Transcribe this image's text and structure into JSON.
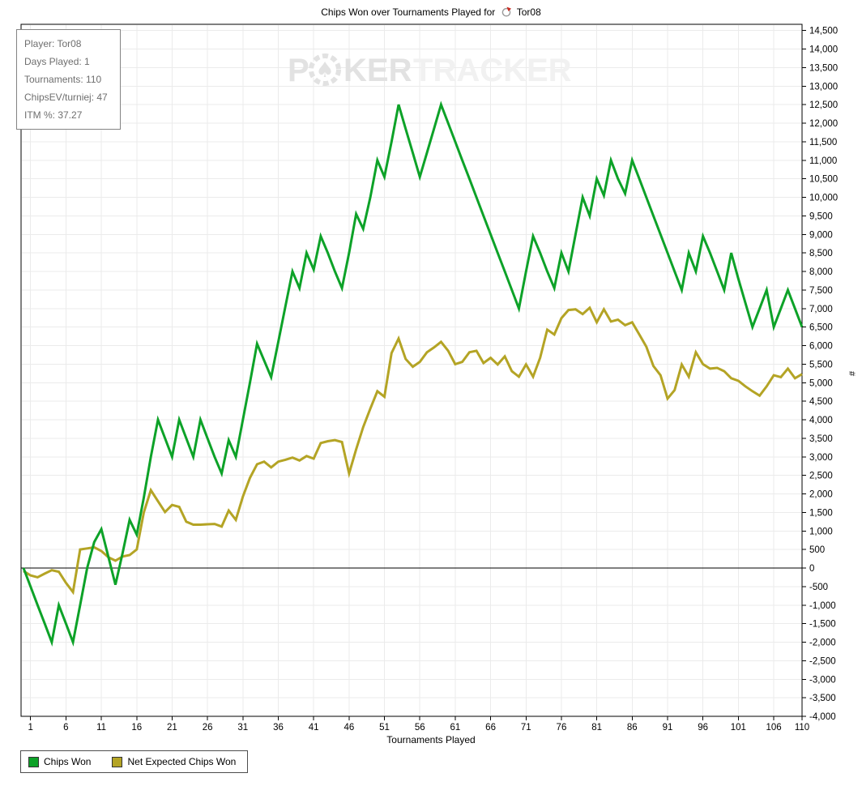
{
  "title": {
    "prefix": "Chips Won over Tournaments Played for",
    "player": "Tor08"
  },
  "info_box": {
    "lines": [
      "Player: Tor08",
      "Days Played: 1",
      "Tournaments: 110",
      "ChipsEV/turniej: 47",
      "ITM %: 37.27"
    ]
  },
  "watermark": {
    "part1": "P",
    "spade": "♠",
    "part2": "KER",
    "part3": "TRACKER"
  },
  "legend": {
    "items": [
      {
        "label": "Chips Won",
        "color": "#0da228"
      },
      {
        "label": "Net Expected Chips Won",
        "color": "#b4a425"
      }
    ]
  },
  "chart_data": {
    "type": "line",
    "title": "Chips Won over Tournaments Played for Tor08",
    "xlabel": "Tournaments Played",
    "ylabel": "#",
    "x_ticks": [
      1,
      6,
      11,
      16,
      21,
      26,
      31,
      36,
      41,
      46,
      51,
      56,
      61,
      66,
      71,
      76,
      81,
      86,
      91,
      96,
      101,
      106,
      110
    ],
    "x_range": [
      0,
      110
    ],
    "y_min": -4000,
    "y_max": 14500,
    "y_step": 500,
    "grid": true,
    "zero_line": true,
    "legend_position": "bottom-left",
    "series": [
      {
        "name": "Chips Won",
        "color": "#0da228",
        "x_start": 0,
        "values": [
          0,
          -500,
          -1000,
          -1500,
          -2000,
          -1000,
          -1500,
          -2000,
          -1000,
          0,
          700,
          1050,
          300,
          -450,
          400,
          1300,
          900,
          1900,
          3000,
          4000,
          3500,
          3000,
          4000,
          3500,
          3000,
          4000,
          3500,
          3000,
          2550,
          3450,
          3000,
          4000,
          5000,
          6050,
          5600,
          5150,
          6100,
          7050,
          8000,
          7550,
          8500,
          8050,
          8950,
          8500,
          8000,
          7550,
          8500,
          9550,
          9150,
          10000,
          11000,
          10550,
          11500,
          12500,
          11850,
          11200,
          10550,
          11200,
          11850,
          12500,
          12000,
          11500,
          11000,
          10500,
          10000,
          9500,
          9000,
          8500,
          8000,
          7500,
          7000,
          8000,
          8950,
          8500,
          8000,
          7550,
          8500,
          8000,
          9000,
          10000,
          9500,
          10500,
          10050,
          11000,
          10500,
          10100,
          11000,
          10500,
          10000,
          9500,
          9000,
          8500,
          8000,
          7500,
          8500,
          8000,
          8950,
          8500,
          8000,
          7500,
          8500,
          7800,
          7150,
          6500,
          7000,
          7500,
          6500,
          7000,
          7500,
          7000,
          6500
        ]
      },
      {
        "name": "Net Expected Chips Won",
        "color": "#b4a425",
        "x_start": 0,
        "values": [
          -80,
          -200,
          -250,
          -150,
          -60,
          -100,
          -400,
          -650,
          500,
          530,
          560,
          460,
          290,
          200,
          310,
          350,
          500,
          1500,
          2100,
          1800,
          1510,
          1700,
          1650,
          1250,
          1170,
          1170,
          1180,
          1190,
          1120,
          1550,
          1300,
          1925,
          2430,
          2800,
          2870,
          2715,
          2870,
          2920,
          2980,
          2900,
          3020,
          2950,
          3370,
          3420,
          3450,
          3400,
          2550,
          3200,
          3800,
          4300,
          4770,
          4620,
          5800,
          6190,
          5640,
          5430,
          5560,
          5820,
          5950,
          6100,
          5860,
          5500,
          5560,
          5820,
          5860,
          5530,
          5670,
          5490,
          5710,
          5310,
          5160,
          5490,
          5160,
          5670,
          6430,
          6300,
          6740,
          6960,
          6980,
          6850,
          7020,
          6630,
          6980,
          6650,
          6700,
          6550,
          6630,
          6300,
          5970,
          5450,
          5200,
          4570,
          4800,
          5490,
          5160,
          5820,
          5500,
          5380,
          5400,
          5310,
          5120,
          5050,
          4900,
          4770,
          4650,
          4900,
          5200,
          5150,
          5380,
          5120,
          5230
        ]
      }
    ]
  },
  "colors": {
    "grid": "#ebebeb",
    "axis": "#000000",
    "tick_label": "#000000",
    "watermark_dark": "#e2e2e2",
    "watermark_light": "#f1f1f1",
    "info_text": "#6e6e6e"
  }
}
